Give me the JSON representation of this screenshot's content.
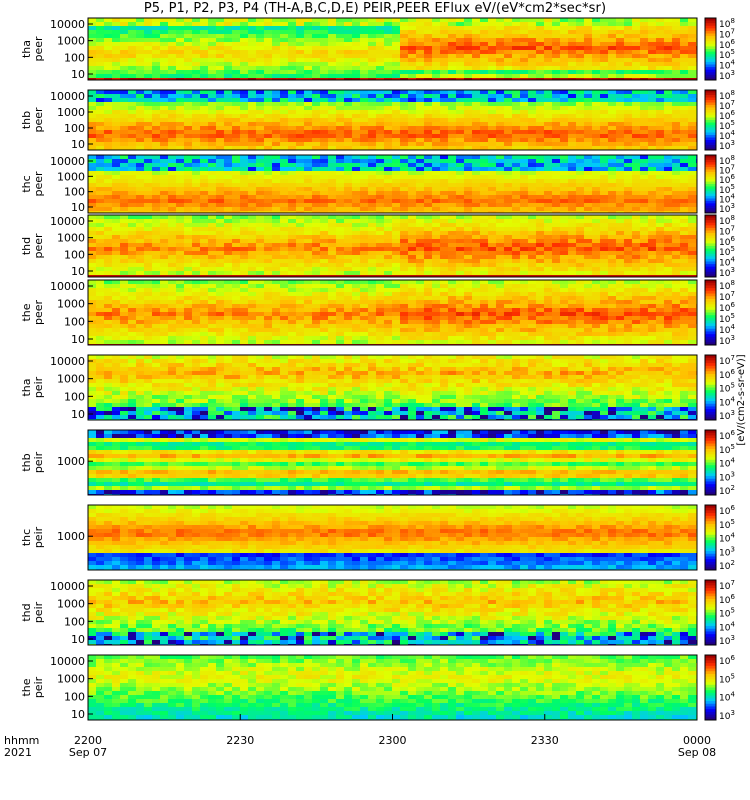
{
  "title": "P5, P1, P2, P3, P4 (TH-A,B,C,D,E) PEIR,PEER EFlux eV/(eV*cm2*sec*sr)",
  "chart_data": {
    "type": "heatmap",
    "title": "P5, P1, P2, P3, P4 (TH-A,B,C,D,E) PEIR,PEER EFlux eV/(eV*cm2*sec*sr)",
    "x_axis": {
      "row_labels": [
        "hhmm",
        "2021"
      ],
      "ticks": [
        {
          "time": "2200",
          "date": "Sep 07"
        },
        {
          "time": "2230",
          "date": ""
        },
        {
          "time": "2300",
          "date": ""
        },
        {
          "time": "2330",
          "date": ""
        },
        {
          "time": "0000",
          "date": "Sep 08"
        }
      ]
    },
    "colorbar_label": "[eV/(cm2-s-sr-eV)]",
    "palette": [
      "#200080",
      "#0000ff",
      "#00c8ff",
      "#00ff60",
      "#e0ff00",
      "#ffc000",
      "#ff3000",
      "#a00000"
    ],
    "panels": [
      {
        "probe": "tha",
        "product": "peer",
        "label": "tha peer",
        "yticks": [
          "10000",
          "1000",
          "100",
          "10"
        ],
        "cbticks": [
          "10^8",
          "10^7",
          "10^6",
          "10^5",
          "10^4",
          "10^3"
        ],
        "pattern": "electron_a"
      },
      {
        "probe": "thb",
        "product": "peer",
        "label": "thb peer",
        "yticks": [
          "10000",
          "1000",
          "100",
          "10"
        ],
        "cbticks": [
          "10^8",
          "10^7",
          "10^6",
          "10^5",
          "10^4",
          "10^3"
        ],
        "pattern": "electron_b"
      },
      {
        "probe": "thc",
        "product": "peer",
        "label": "thc peer",
        "yticks": [
          "10000",
          "1000",
          "100",
          "10"
        ],
        "cbticks": [
          "10^8",
          "10^7",
          "10^6",
          "10^5",
          "10^4",
          "10^3"
        ],
        "pattern": "electron_c"
      },
      {
        "probe": "thd",
        "product": "peer",
        "label": "thd peer",
        "yticks": [
          "10000",
          "1000",
          "100",
          "10"
        ],
        "cbticks": [
          "10^8",
          "10^7",
          "10^6",
          "10^5",
          "10^4",
          "10^3"
        ],
        "pattern": "electron_d"
      },
      {
        "probe": "the",
        "product": "peer",
        "label": "the peer",
        "yticks": [
          "10000",
          "1000",
          "100",
          "10"
        ],
        "cbticks": [
          "10^8",
          "10^7",
          "10^6",
          "10^5",
          "10^4",
          "10^3"
        ],
        "pattern": "electron_e"
      },
      {
        "probe": "tha",
        "product": "peir",
        "label": "tha peir",
        "yticks": [
          "10000",
          "1000",
          "100",
          "10"
        ],
        "cbticks": [
          "10^7",
          "10^6",
          "10^5",
          "10^4",
          "10^3"
        ],
        "pattern": "ion_a"
      },
      {
        "probe": "thb",
        "product": "peir",
        "label": "thb peir",
        "yticks": [
          "1000"
        ],
        "cbticks": [
          "10^6",
          "10^5",
          "10^4",
          "10^3",
          "10^2"
        ],
        "pattern": "ion_b"
      },
      {
        "probe": "thc",
        "product": "peir",
        "label": "thc peir",
        "yticks": [
          "1000"
        ],
        "cbticks": [
          "10^6",
          "10^5",
          "10^4",
          "10^3",
          "10^2"
        ],
        "pattern": "ion_c"
      },
      {
        "probe": "thd",
        "product": "peir",
        "label": "thd peir",
        "yticks": [
          "10000",
          "1000",
          "100",
          "10"
        ],
        "cbticks": [
          "10^7",
          "10^6",
          "10^5",
          "10^4",
          "10^3"
        ],
        "pattern": "ion_d"
      },
      {
        "probe": "the",
        "product": "peir",
        "label": "the peir",
        "yticks": [
          "10000",
          "1000",
          "100",
          "10"
        ],
        "cbticks": [
          "10^6",
          "10^5",
          "10^4",
          "10^3"
        ],
        "pattern": "ion_e"
      }
    ]
  }
}
